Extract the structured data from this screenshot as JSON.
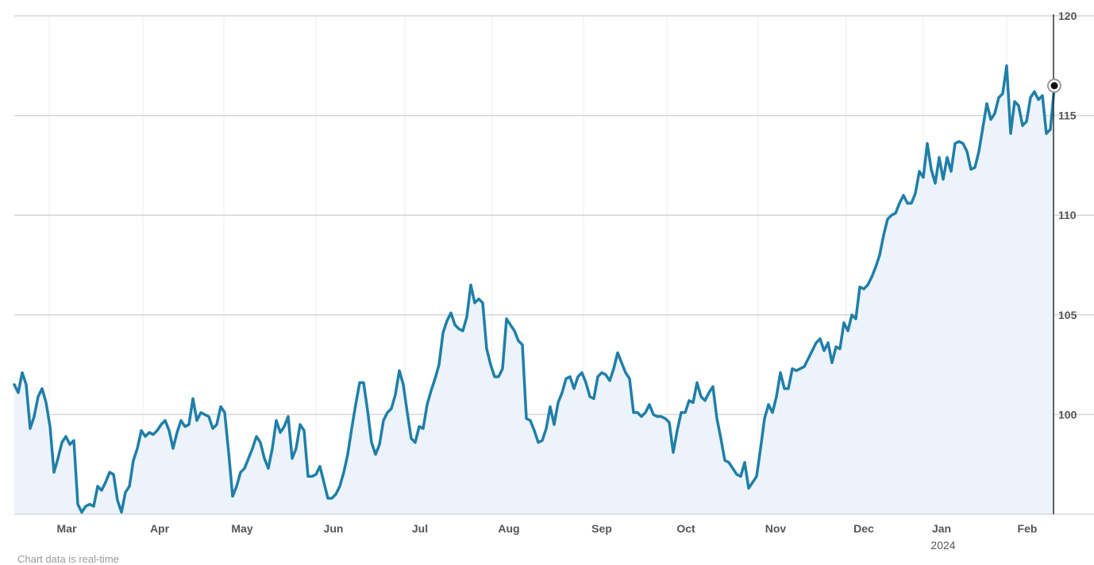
{
  "footnote": "Chart data is real-time",
  "chart_data": {
    "type": "area",
    "x_tick_labels": [
      "Mar",
      "Apr",
      "May",
      "Jun",
      "Jul",
      "Aug",
      "Sep",
      "Oct",
      "Nov",
      "Dec",
      "Jan",
      "Feb"
    ],
    "x_year_label": "2024",
    "y_ticks": [
      100,
      105,
      110,
      115,
      120
    ],
    "ylim": [
      95,
      120
    ],
    "grid": true,
    "colors": {
      "line": "#1f7fa8",
      "fill": "#edf3fa",
      "grid": "#d6d6d6"
    },
    "series": [
      {
        "values": [
          101.5,
          101.1,
          102.1,
          101.5,
          99.3,
          99.9,
          100.9,
          101.3,
          100.6,
          99.4,
          97.1,
          97.8,
          98.6,
          98.9,
          98.5,
          98.7,
          95.5,
          95.1,
          95.4,
          95.5,
          95.4,
          96.4,
          96.2,
          96.6,
          97.1,
          97.0,
          95.7,
          95.1,
          96.1,
          96.4,
          97.7,
          98.3,
          99.2,
          98.9,
          99.1,
          99.0,
          99.2,
          99.5,
          99.7,
          99.2,
          98.3,
          99.1,
          99.7,
          99.4,
          99.5,
          100.8,
          99.7,
          100.1,
          100.0,
          99.9,
          99.3,
          99.5,
          100.4,
          100.1,
          98.1,
          95.9,
          96.4,
          97.1,
          97.3,
          97.8,
          98.3,
          98.9,
          98.6,
          97.8,
          97.3,
          98.3,
          99.7,
          99.1,
          99.4,
          99.9,
          97.8,
          98.3,
          99.5,
          99.2,
          96.9,
          96.9,
          97.0,
          97.4,
          96.6,
          95.8,
          95.8,
          96.0,
          96.4,
          97.1,
          98.0,
          99.3,
          100.5,
          101.6,
          101.6,
          100.2,
          98.6,
          98.0,
          98.5,
          99.7,
          100.1,
          100.3,
          101.0,
          102.2,
          101.5,
          100.1,
          98.8,
          98.6,
          99.4,
          99.3,
          100.5,
          101.2,
          101.8,
          102.5,
          104.1,
          104.7,
          105.1,
          104.5,
          104.3,
          104.2,
          104.9,
          106.5,
          105.6,
          105.8,
          105.6,
          103.3,
          102.5,
          101.9,
          101.9,
          102.3,
          104.8,
          104.5,
          104.2,
          103.7,
          103.5,
          99.8,
          99.7,
          99.2,
          98.6,
          98.7,
          99.3,
          100.4,
          99.5,
          100.6,
          101.1,
          101.8,
          101.9,
          101.3,
          101.9,
          102.1,
          101.6,
          100.9,
          100.8,
          101.9,
          102.1,
          102.0,
          101.7,
          102.3,
          103.1,
          102.6,
          102.1,
          101.8,
          100.1,
          100.1,
          99.9,
          100.1,
          100.5,
          100.0,
          99.9,
          99.9,
          99.8,
          99.6,
          98.1,
          99.2,
          100.1,
          100.1,
          100.7,
          100.6,
          101.6,
          100.9,
          100.7,
          101.1,
          101.4,
          99.8,
          98.8,
          97.7,
          97.6,
          97.3,
          97.0,
          96.9,
          97.6,
          96.3,
          96.6,
          96.9,
          98.3,
          99.8,
          100.5,
          100.1,
          100.9,
          102.1,
          101.3,
          101.3,
          102.3,
          102.2,
          102.3,
          102.4,
          102.8,
          103.2,
          103.6,
          103.8,
          103.2,
          103.6,
          102.6,
          103.4,
          103.3,
          104.6,
          104.2,
          105.0,
          104.8,
          106.4,
          106.3,
          106.5,
          106.9,
          107.4,
          108.0,
          109.0,
          109.8,
          110.0,
          110.1,
          110.6,
          111.0,
          110.6,
          110.6,
          111.1,
          112.2,
          111.9,
          113.6,
          112.3,
          111.6,
          112.9,
          111.8,
          112.9,
          112.2,
          113.6,
          113.7,
          113.6,
          113.2,
          112.3,
          112.4,
          113.2,
          114.4,
          115.6,
          114.8,
          115.1,
          115.9,
          116.1,
          117.5,
          114.1,
          115.7,
          115.5,
          114.5,
          114.7,
          115.9,
          116.2,
          115.8,
          116.0,
          114.1,
          114.3,
          116.4
        ]
      }
    ]
  }
}
